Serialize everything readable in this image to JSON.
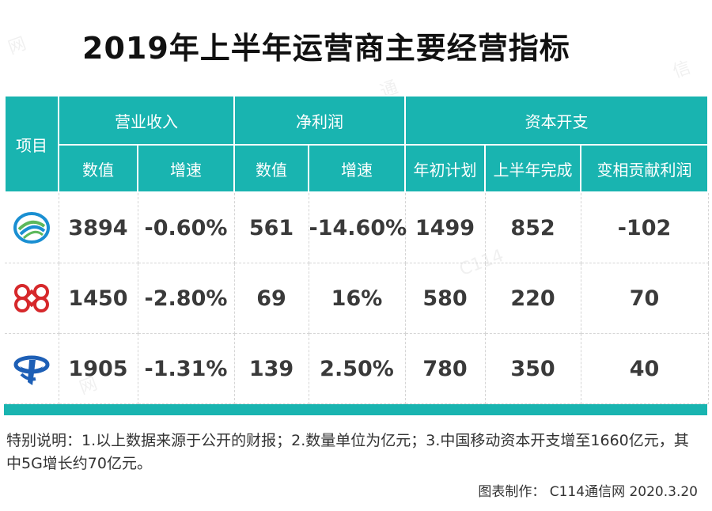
{
  "title": "2019年上半年运营商主要经营指标",
  "table": {
    "item_header": "项目",
    "groups": [
      "营业收入",
      "净利润",
      "资本开支"
    ],
    "subheaders": [
      "数值",
      "增速",
      "数值",
      "增速",
      "年初计划",
      "上半年完成",
      "变相贡献利润"
    ],
    "rows": [
      {
        "logo": "china-mobile-logo",
        "cells": [
          "3894",
          "-0.60%",
          "561",
          "-14.60%",
          "1499",
          "852",
          "-102"
        ]
      },
      {
        "logo": "china-unicom-logo",
        "cells": [
          "1450",
          "-2.80%",
          "69",
          "16%",
          "580",
          "220",
          "70"
        ]
      },
      {
        "logo": "china-telecom-logo",
        "cells": [
          "1905",
          "-1.31%",
          "139",
          "2.50%",
          "780",
          "350",
          "40"
        ]
      }
    ]
  },
  "note": "特别说明：1.以上数据来源于公开的财报；2.数量单位为亿元；3.中国移动资本开支增至1660亿元，其中5G增长约70亿元。",
  "credit": "图表制作：  C114通信网  2020.3.20",
  "colors": {
    "header": "#19b4b0",
    "mobile": "#1a8fd2",
    "unicom": "#d6282b",
    "telecom": "#1d5fb6"
  }
}
